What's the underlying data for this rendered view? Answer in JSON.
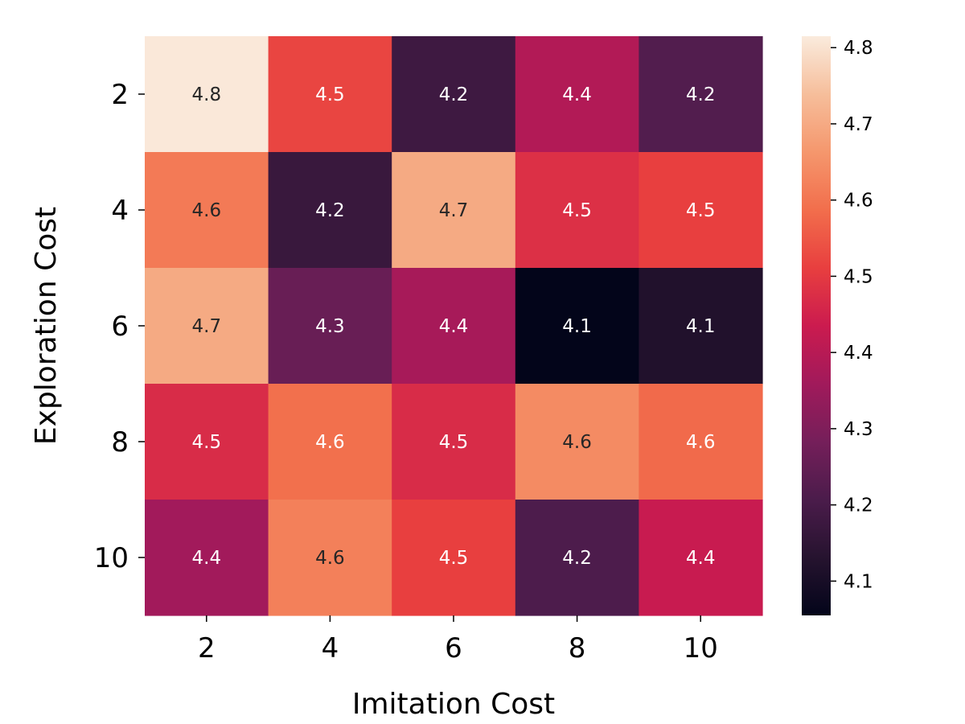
{
  "chart_data": {
    "type": "heatmap",
    "title": "",
    "xlabel": "Imitation Cost",
    "ylabel": "Exploration Cost",
    "x_categories": [
      "2",
      "4",
      "6",
      "8",
      "10"
    ],
    "y_categories": [
      "2",
      "4",
      "6",
      "8",
      "10"
    ],
    "values": [
      [
        4.81,
        4.52,
        4.18,
        4.39,
        4.22
      ],
      [
        4.61,
        4.17,
        4.7,
        4.48,
        4.51
      ],
      [
        4.7,
        4.26,
        4.37,
        4.05,
        4.12
      ],
      [
        4.47,
        4.59,
        4.47,
        4.64,
        4.58
      ],
      [
        4.36,
        4.62,
        4.51,
        4.21,
        4.43
      ]
    ],
    "cell_labels": [
      [
        "4.8",
        "4.5",
        "4.2",
        "4.4",
        "4.2"
      ],
      [
        "4.6",
        "4.2",
        "4.7",
        "4.5",
        "4.5"
      ],
      [
        "4.7",
        "4.3",
        "4.4",
        "4.1",
        "4.1"
      ],
      [
        "4.5",
        "4.6",
        "4.5",
        "4.6",
        "4.6"
      ],
      [
        "4.4",
        "4.6",
        "4.5",
        "4.2",
        "4.4"
      ]
    ],
    "colorbar": {
      "min": 4.055,
      "max": 4.815,
      "ticks": [
        "4.1",
        "4.2",
        "4.3",
        "4.4",
        "4.5",
        "4.6",
        "4.7",
        "4.8"
      ],
      "colormap": "rocket"
    },
    "grid": false,
    "legend": "colorbar-right"
  }
}
